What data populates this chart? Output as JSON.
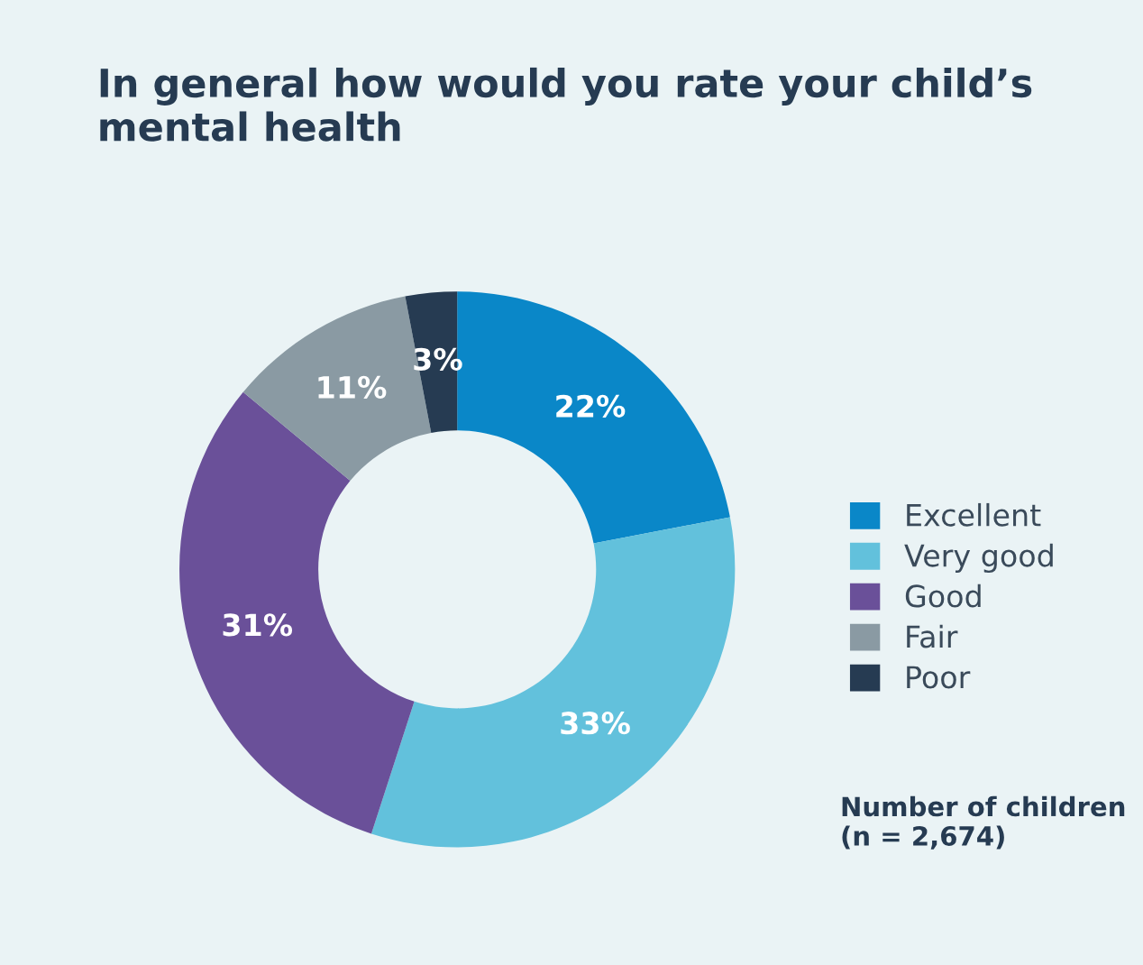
{
  "chart_data": {
    "type": "donut",
    "title": "In general how would you rate your child’s mental health",
    "categories": [
      "Excellent",
      "Very good",
      "Good",
      "Fair",
      "Poor"
    ],
    "values": [
      22,
      33,
      31,
      11,
      3
    ],
    "colors": [
      "#0a87c8",
      "#62c1dc",
      "#6a5099",
      "#8a9aa3",
      "#263b52"
    ],
    "value_labels": [
      "22%",
      "33%",
      "31%",
      "11%",
      "3%"
    ],
    "legend": "right",
    "annotations": [
      "Number of children\n(n = 2,674)"
    ]
  }
}
